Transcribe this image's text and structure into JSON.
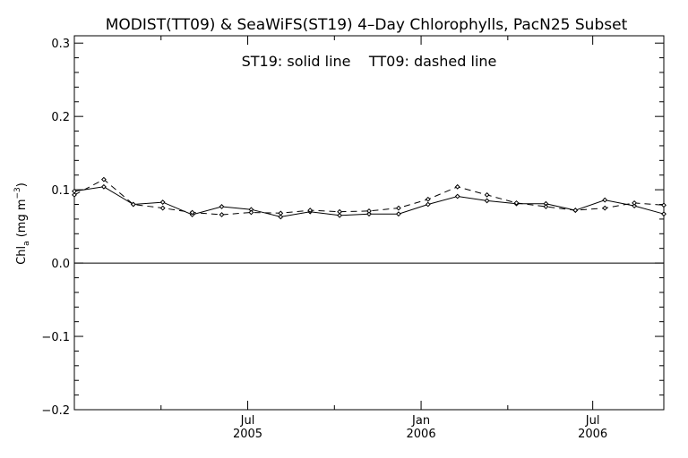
{
  "chart_data": {
    "type": "line",
    "title": "MODIST(TT09) & SeaWiFS(ST19) 4–Day Chlorophylls, PacN25 Subset",
    "annotation": "ST19: solid line    TT09: dashed line",
    "ylabel_main": "Chl",
    "ylabel_sub": "a",
    "ylabel_units": " (mg m",
    "ylabel_sup": "−3",
    "ylabel_close": ")",
    "ylim": [
      -0.2,
      0.31
    ],
    "yticks": [
      {
        "value": -0.2,
        "label": "−0.2"
      },
      {
        "value": -0.1,
        "label": "−0.1"
      },
      {
        "value": 0.0,
        "label": "0.0"
      },
      {
        "value": 0.1,
        "label": "0.1"
      },
      {
        "value": 0.2,
        "label": "0.2"
      },
      {
        "value": 0.3,
        "label": "0.3"
      }
    ],
    "xlim": [
      -6,
      28
    ],
    "xticks": [
      {
        "value": 4.0,
        "label": "Jul",
        "sub": "2005"
      },
      {
        "value": 14.0,
        "label": "Jan",
        "sub": "2006"
      },
      {
        "value": 23.9,
        "label": "Jul",
        "sub": "2006"
      }
    ],
    "xminor": [
      -1.0,
      9.0,
      19.0
    ],
    "zero_line": 0.0,
    "x": [
      -6.0,
      -4.3,
      -2.6,
      -0.9,
      0.8,
      2.5,
      4.2,
      5.9,
      7.6,
      9.3,
      11.0,
      12.7,
      14.4,
      16.1,
      17.8,
      19.5,
      21.2,
      22.9,
      24.6,
      26.3,
      28.0
    ],
    "series": [
      {
        "name": "ST19",
        "style": "solid",
        "values": [
          0.098,
          0.104,
          0.08,
          0.083,
          0.066,
          0.077,
          0.073,
          0.063,
          0.07,
          0.065,
          0.067,
          0.067,
          0.08,
          0.091,
          0.085,
          0.081,
          0.081,
          0.072,
          0.086,
          0.078,
          0.067
        ]
      },
      {
        "name": "TT09",
        "style": "dashed",
        "values": [
          0.093,
          0.114,
          0.08,
          0.075,
          0.069,
          0.066,
          0.069,
          0.068,
          0.072,
          0.07,
          0.071,
          0.075,
          0.087,
          0.104,
          0.093,
          0.082,
          0.077,
          0.072,
          0.075,
          0.082,
          0.079
        ]
      }
    ]
  }
}
